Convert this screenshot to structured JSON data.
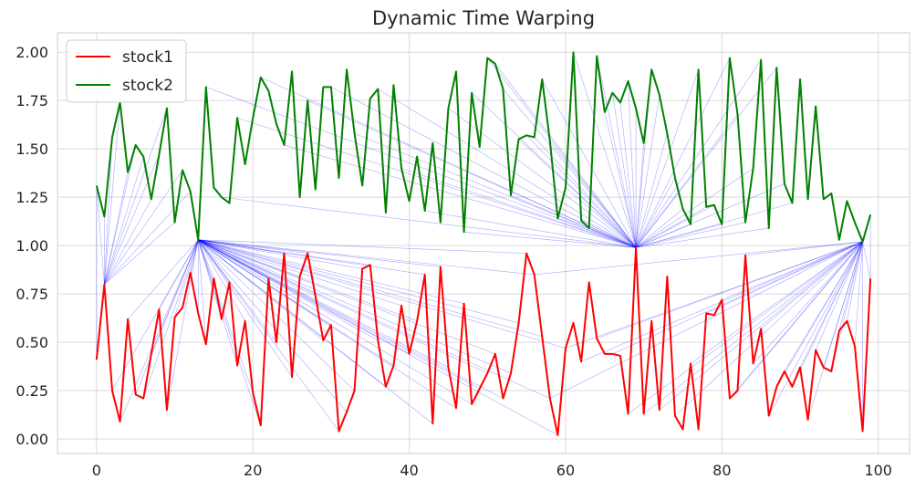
{
  "chart_data": {
    "type": "line",
    "title": "Dynamic Time Warping",
    "xlabel": "",
    "ylabel": "",
    "xlim": [
      -5,
      104
    ],
    "ylim": [
      -0.075,
      2.1
    ],
    "xticks": [
      0,
      20,
      40,
      60,
      80,
      100
    ],
    "yticks": [
      0.0,
      0.25,
      0.5,
      0.75,
      1.0,
      1.25,
      1.5,
      1.75,
      2.0
    ],
    "xtick_labels": [
      "0",
      "20",
      "40",
      "60",
      "80",
      "100"
    ],
    "ytick_labels": [
      "0.00",
      "0.25",
      "0.50",
      "0.75",
      "1.00",
      "1.25",
      "1.50",
      "1.75",
      "2.00"
    ],
    "grid": true,
    "legend": "top-left",
    "series": [
      {
        "name": "stock1",
        "color": "#ff0000",
        "values": [
          0.41,
          0.8,
          0.25,
          0.09,
          0.62,
          0.23,
          0.21,
          0.44,
          0.67,
          0.15,
          0.63,
          0.68,
          0.86,
          0.65,
          0.49,
          0.83,
          0.62,
          0.81,
          0.38,
          0.61,
          0.24,
          0.07,
          0.83,
          0.5,
          0.96,
          0.32,
          0.84,
          0.96,
          0.74,
          0.51,
          0.59,
          0.04,
          0.14,
          0.25,
          0.88,
          0.9,
          0.51,
          0.27,
          0.38,
          0.69,
          0.44,
          0.61,
          0.85,
          0.08,
          0.89,
          0.37,
          0.16,
          0.7,
          0.18,
          0.26,
          0.34,
          0.44,
          0.21,
          0.34,
          0.6,
          0.96,
          0.85,
          0.53,
          0.21,
          0.02,
          0.47,
          0.6,
          0.4,
          0.81,
          0.52,
          0.44,
          0.44,
          0.43,
          0.13,
          0.99,
          0.13,
          0.61,
          0.15,
          0.84,
          0.12,
          0.05,
          0.39,
          0.05,
          0.65,
          0.64,
          0.72,
          0.21,
          0.25,
          0.95,
          0.39,
          0.57,
          0.12,
          0.27,
          0.35,
          0.27,
          0.37,
          0.1,
          0.46,
          0.37,
          0.35,
          0.56,
          0.61,
          0.48,
          0.04,
          0.83
        ]
      },
      {
        "name": "stock2",
        "color": "#008000",
        "values": [
          1.31,
          1.15,
          1.56,
          1.74,
          1.38,
          1.52,
          1.46,
          1.24,
          1.47,
          1.71,
          1.12,
          1.39,
          1.28,
          1.03,
          1.82,
          1.3,
          1.25,
          1.22,
          1.66,
          1.42,
          1.66,
          1.87,
          1.8,
          1.63,
          1.52,
          1.9,
          1.25,
          1.75,
          1.29,
          1.82,
          1.82,
          1.35,
          1.91,
          1.58,
          1.31,
          1.76,
          1.81,
          1.17,
          1.83,
          1.4,
          1.23,
          1.46,
          1.18,
          1.53,
          1.12,
          1.71,
          1.9,
          1.07,
          1.79,
          1.51,
          1.97,
          1.94,
          1.81,
          1.26,
          1.55,
          1.57,
          1.56,
          1.86,
          1.54,
          1.14,
          1.3,
          2.0,
          1.13,
          1.09,
          1.98,
          1.69,
          1.79,
          1.74,
          1.85,
          1.71,
          1.53,
          1.91,
          1.78,
          1.58,
          1.35,
          1.19,
          1.11,
          1.91,
          1.2,
          1.21,
          1.11,
          1.97,
          1.68,
          1.12,
          1.4,
          1.96,
          1.09,
          1.92,
          1.32,
          1.22,
          1.86,
          1.24,
          1.72,
          1.24,
          1.27,
          1.03,
          1.23,
          1.12,
          1.02,
          1.16
        ]
      }
    ],
    "warping_color": "#0000ff",
    "warping_hubs": [
      {
        "stock2_index": 13,
        "stock1_indices": [
          2,
          3,
          4,
          5,
          6,
          7,
          8,
          9,
          10,
          11,
          12,
          13,
          14,
          15,
          16,
          17,
          18,
          19,
          20,
          21,
          22,
          23,
          24,
          25,
          26,
          27,
          28,
          29,
          30,
          31,
          32,
          33,
          34,
          35,
          36,
          37,
          38,
          39,
          40,
          41,
          42,
          43,
          44,
          45,
          46,
          47,
          48,
          49,
          50,
          51,
          52,
          53,
          54,
          55,
          56,
          57,
          58,
          59,
          60
        ]
      },
      {
        "stock1_index": 69,
        "stock2_indices": [
          14,
          16,
          18,
          21,
          24,
          27,
          30,
          33,
          36,
          39,
          42,
          45,
          47,
          48,
          50,
          51,
          52,
          53,
          54,
          55,
          56,
          57,
          58,
          59,
          60,
          61,
          62,
          63,
          64,
          65,
          66,
          67,
          68,
          69,
          70,
          71,
          72,
          73,
          74,
          75,
          76,
          77,
          78,
          79,
          80,
          81,
          82,
          83,
          84,
          85,
          86,
          87,
          88,
          89
        ]
      },
      {
        "stock2_index": 98,
        "stock1_indices": [
          56,
          58,
          60,
          62,
          64,
          66,
          68,
          70,
          72,
          74,
          76,
          78,
          80,
          81,
          82,
          83,
          84,
          85,
          86,
          87,
          88,
          89,
          90,
          91,
          92,
          93,
          94,
          95,
          96,
          97,
          98,
          99
        ]
      },
      {
        "stock1_index": 1,
        "stock2_indices": [
          0,
          1,
          2,
          3,
          4,
          5,
          6,
          7,
          8,
          9,
          10,
          11,
          12
        ]
      },
      {
        "stock1_index": 0,
        "stock2_indices": [
          0
        ]
      },
      {
        "stock1_index": 99,
        "stock2_indices": [
          99
        ]
      }
    ]
  }
}
